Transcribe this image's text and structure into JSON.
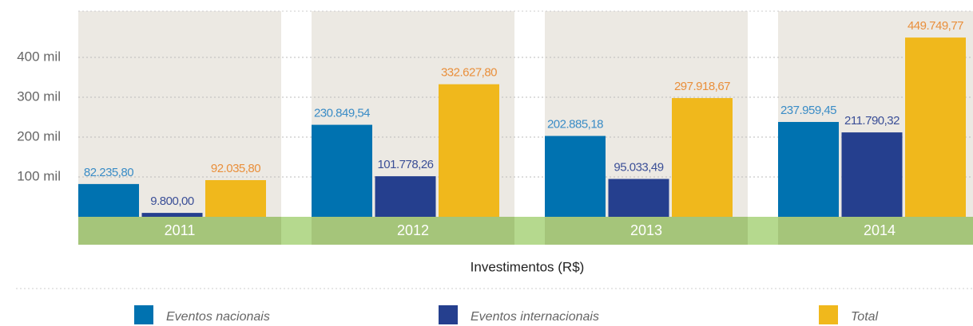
{
  "chart_data": {
    "type": "bar",
    "x_label": "Investimentos (R$)",
    "categories": [
      "2011",
      "2012",
      "2013",
      "2014"
    ],
    "series": [
      {
        "name": "Eventos nacionais",
        "color": "#0072b0",
        "label_color": "#3a8cc6",
        "values": [
          82235.8,
          230849.54,
          202885.18,
          237959.45
        ],
        "value_labels": [
          "82.235,80",
          "230.849,54",
          "202.885,18",
          "237.959,45"
        ]
      },
      {
        "name": "Eventos internacionais",
        "color": "#253f8e",
        "label_color": "#3b4f97",
        "values": [
          9800.0,
          101778.26,
          95033.49,
          211790.32
        ],
        "value_labels": [
          "9.800,00",
          "101.778,26",
          "95.033,49",
          "211.790,32"
        ]
      },
      {
        "name": "Total",
        "color": "#f0b81c",
        "label_color": "#e98f3b",
        "values": [
          92035.8,
          332627.8,
          297918.67,
          449749.77
        ],
        "value_labels": [
          "92.035,80",
          "332.627,80",
          "297.918,67",
          "449.749,77"
        ]
      }
    ],
    "ylim": [
      0,
      516000
    ],
    "yticks": [
      {
        "value": 100000,
        "label": "100 mil"
      },
      {
        "value": 200000,
        "label": "200 mil"
      },
      {
        "value": 300000,
        "label": "300 mil"
      },
      {
        "value": 400000,
        "label": "400 mil"
      }
    ],
    "grid": true
  }
}
